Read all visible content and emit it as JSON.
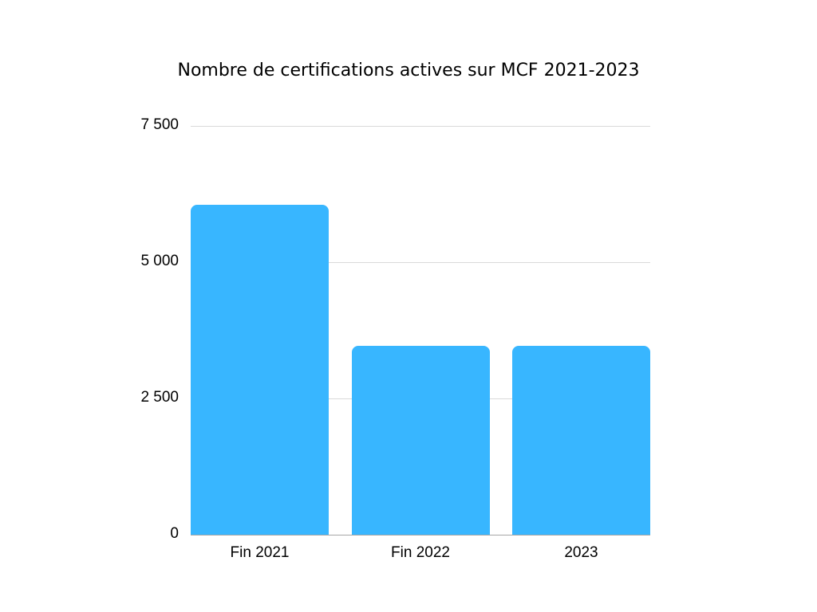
{
  "chart_data": {
    "type": "bar",
    "title": "Nombre de certifications actives sur MCF 2021-2023",
    "categories": [
      "Fin 2021",
      "Fin 2022",
      "2023"
    ],
    "values": [
      6050,
      3460,
      3470
    ],
    "xlabel": "",
    "ylabel": "",
    "ylim": [
      0,
      7500
    ],
    "yticks": [
      0,
      2500,
      5000,
      7500
    ],
    "ytick_labels": [
      "0",
      "2 500",
      "5 000",
      "7 500"
    ],
    "grid": true,
    "legend": null,
    "bar_color": "#38b6ff"
  }
}
